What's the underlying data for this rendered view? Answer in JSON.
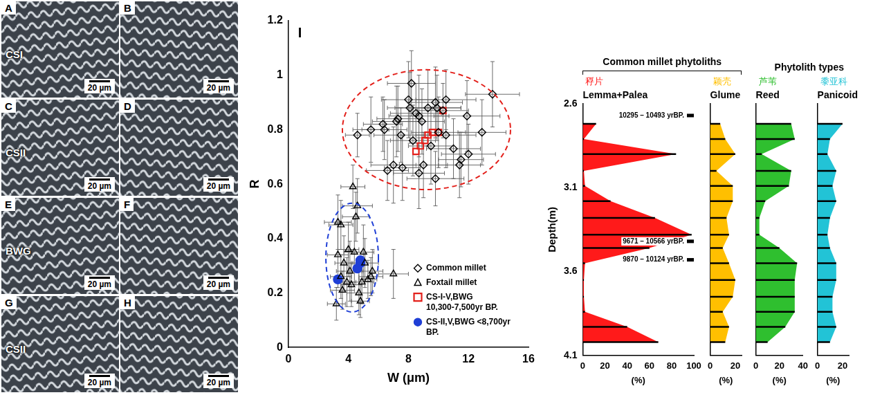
{
  "micrographs": [
    {
      "letter": "A",
      "label": "CSI",
      "scale_bar": "20 µm"
    },
    {
      "letter": "B",
      "scale_bar": "20 µm"
    },
    {
      "letter": "C",
      "label": "CSII",
      "scale_bar": "20 µm"
    },
    {
      "letter": "D",
      "scale_bar": "20 µm"
    },
    {
      "letter": "E",
      "label": "BWG",
      "scale_bar": "20 µm"
    },
    {
      "letter": "F",
      "scale_bar": "20 µm"
    },
    {
      "letter": "G",
      "label": "CSII",
      "scale_bar": "20 µm"
    },
    {
      "letter": "H",
      "scale_bar": "20 µm"
    }
  ],
  "chart_data": [
    {
      "type": "scatter",
      "panel": "I",
      "xlabel": "W (μm)",
      "ylabel": "R",
      "xlim": [
        0,
        16
      ],
      "xticks": [
        0,
        4,
        8,
        12,
        16
      ],
      "ylim": [
        0,
        1.2
      ],
      "yticks": [
        0,
        0.2,
        0.4,
        0.6,
        0.8,
        1,
        1.2
      ],
      "grid": false,
      "legend": "lower right",
      "series": [
        {
          "name": "Common millet",
          "color": "#000000",
          "marker": "open diamond",
          "x": [
            4.6,
            5.5,
            6.3,
            6.4,
            7.2,
            7.3,
            7.5,
            7.0,
            7.6,
            6.6,
            8.2,
            8.0,
            8.1,
            8.5,
            8.7,
            8.9,
            9.3,
            9.8,
            9.9,
            10.5,
            10.0,
            9.5,
            9.0,
            8.7,
            9.8,
            10.5,
            11.0,
            11.5,
            11.4,
            11.9,
            12.0,
            12.9,
            13.6,
            10.3,
            8.3
          ],
          "values": [
            0.78,
            0.8,
            0.82,
            0.8,
            0.83,
            0.84,
            0.78,
            0.67,
            0.66,
            0.65,
            0.97,
            0.91,
            0.88,
            0.86,
            0.85,
            0.83,
            0.88,
            0.9,
            0.88,
            0.91,
            0.79,
            0.74,
            0.67,
            0.64,
            0.62,
            0.78,
            0.73,
            0.69,
            0.67,
            0.85,
            0.71,
            0.79,
            0.93,
            0.87,
            0.76
          ],
          "xerr": [
            0.8,
            1.2,
            1.3,
            1.5,
            1.6,
            1.4,
            1.8,
            1.5,
            1.2,
            1.4,
            1.6,
            1.8,
            1.5,
            1.7,
            2.0,
            1.5,
            2.2,
            1.8,
            1.6,
            2.0,
            1.8,
            1.5,
            1.6,
            1.7,
            1.9,
            2.0,
            1.8,
            1.5,
            1.4,
            2.2,
            1.8,
            1.6,
            1.8,
            1.7,
            1.5
          ],
          "yerr": [
            0.08,
            0.12,
            0.1,
            0.11,
            0.13,
            0.12,
            0.1,
            0.14,
            0.12,
            0.11,
            0.12,
            0.14,
            0.13,
            0.11,
            0.15,
            0.12,
            0.14,
            0.13,
            0.12,
            0.11,
            0.13,
            0.14,
            0.12,
            0.13,
            0.1,
            0.12,
            0.11,
            0.1,
            0.12,
            0.13,
            0.11,
            0.12,
            0.12,
            0.1,
            0.13
          ]
        },
        {
          "name": "Foxtail millet",
          "color": "#000000",
          "marker": "open triangle",
          "x": [
            3.2,
            3.3,
            3.5,
            3.3,
            3.7,
            3.5,
            3.6,
            3.9,
            4.1,
            4.2,
            4.3,
            4.6,
            4.4,
            4.5,
            4.8,
            4.9,
            5.0,
            5.1,
            5.5,
            5.6,
            5.3,
            7.0,
            4.7,
            4.0
          ],
          "values": [
            0.16,
            0.46,
            0.45,
            0.34,
            0.31,
            0.26,
            0.21,
            0.24,
            0.28,
            0.23,
            0.59,
            0.52,
            0.35,
            0.48,
            0.17,
            0.24,
            0.35,
            0.31,
            0.26,
            0.28,
            0.25,
            0.27,
            0.2,
            0.36
          ],
          "xerr": [
            0.6,
            0.9,
            0.8,
            0.7,
            0.6,
            0.7,
            0.8,
            0.6,
            0.9,
            0.7,
            0.8,
            1.0,
            0.7,
            0.9,
            0.6,
            0.8,
            0.7,
            0.9,
            0.8,
            0.7,
            0.6,
            1.0,
            0.8,
            0.7
          ],
          "yerr": [
            0.06,
            0.1,
            0.09,
            0.12,
            0.1,
            0.08,
            0.07,
            0.09,
            0.11,
            0.08,
            0.08,
            0.1,
            0.12,
            0.09,
            0.06,
            0.08,
            0.1,
            0.09,
            0.07,
            0.08,
            0.07,
            0.09,
            0.08,
            0.1
          ]
        },
        {
          "name": "CS-I-V,BWG 10,300-7,500yr BP.",
          "color": "#e3201b",
          "marker": "open square",
          "x": [
            8.5,
            8.8,
            9.1,
            9.3,
            9.6,
            10.0,
            10.3
          ],
          "values": [
            0.72,
            0.74,
            0.76,
            0.78,
            0.79,
            0.79,
            0.87
          ]
        },
        {
          "name": "CS-II,V,BWG <8,700yr BP.",
          "color": "#1f3fd6",
          "marker": "filled circle",
          "x": [
            3.3,
            4.6,
            4.8,
            4.8
          ],
          "values": [
            0.25,
            0.29,
            0.31,
            0.32
          ]
        }
      ],
      "ellipses": [
        {
          "color": "#e3201b",
          "line_style": "dashed",
          "center": [
            9.2,
            0.8
          ],
          "radius": [
            5.6,
            0.22
          ]
        },
        {
          "color": "#1f3fd6",
          "line_style": "dashed",
          "center": [
            4.25,
            0.33
          ],
          "radius": [
            1.75,
            0.2
          ]
        }
      ]
    },
    {
      "type": "area",
      "orientation": "horizontal",
      "grid": false,
      "ylabel": "Depth(m)",
      "ylim": [
        4.1,
        2.6
      ],
      "yticks": [
        2.6,
        3.1,
        3.6,
        4.1
      ],
      "y": [
        2.72,
        2.81,
        2.9,
        3.0,
        3.09,
        3.18,
        3.28,
        3.38,
        3.46,
        3.55,
        3.65,
        3.75,
        3.84,
        3.93,
        4.02
      ],
      "groups": [
        {
          "title": "Common millet phytoliths",
          "series": [
            {
              "name": "Lemma+Palea",
              "name_zh": "稃片",
              "color": "#ff1a1a",
              "xlabel": "(%)",
              "xlim": [
                0,
                100
              ],
              "xticks": [
                0,
                20,
                40,
                60,
                80,
                100
              ],
              "values": [
                12,
                1,
                84,
                1,
                2,
                25,
                65,
                98,
                60,
                2,
                1,
                1,
                2,
                40,
                68
              ]
            },
            {
              "name": "Glume",
              "name_zh": "颖壳",
              "color": "#ffbf00",
              "xlabel": "(%)",
              "xlim": [
                0,
                25
              ],
              "xticks": [
                0,
                20
              ],
              "values": [
                8,
                12,
                20,
                5,
                18,
                18,
                13,
                15,
                10,
                15,
                20,
                18,
                10,
                15,
                12
              ]
            }
          ]
        },
        {
          "title": "Phytolith types",
          "series": [
            {
              "name": "Reed",
              "name_zh": "芦苇",
              "color": "#2fbf2f",
              "xlabel": "(%)",
              "xlim": [
                0,
                40
              ],
              "xticks": [
                0,
                20,
                40
              ],
              "values": [
                30,
                33,
                5,
                30,
                28,
                8,
                3,
                3,
                20,
                35,
                33,
                33,
                33,
                25,
                10
              ]
            },
            {
              "name": "Panicoid",
              "name_zh": "黍亚科",
              "color": "#22c3d6",
              "xlabel": "(%)",
              "xlim": [
                0,
                25
              ],
              "xticks": [
                0,
                20
              ],
              "values": [
                20,
                10,
                8,
                15,
                12,
                15,
                10,
                8,
                10,
                15,
                15,
                12,
                12,
                15,
                10
              ]
            }
          ]
        }
      ],
      "annotations": [
        {
          "depth": 2.67,
          "label": "10295 – 10493 yrBP."
        },
        {
          "depth": 3.42,
          "label": "9671 – 10566 yrBP."
        },
        {
          "depth": 3.53,
          "label": "9870 – 10124 yrBP."
        }
      ]
    }
  ]
}
